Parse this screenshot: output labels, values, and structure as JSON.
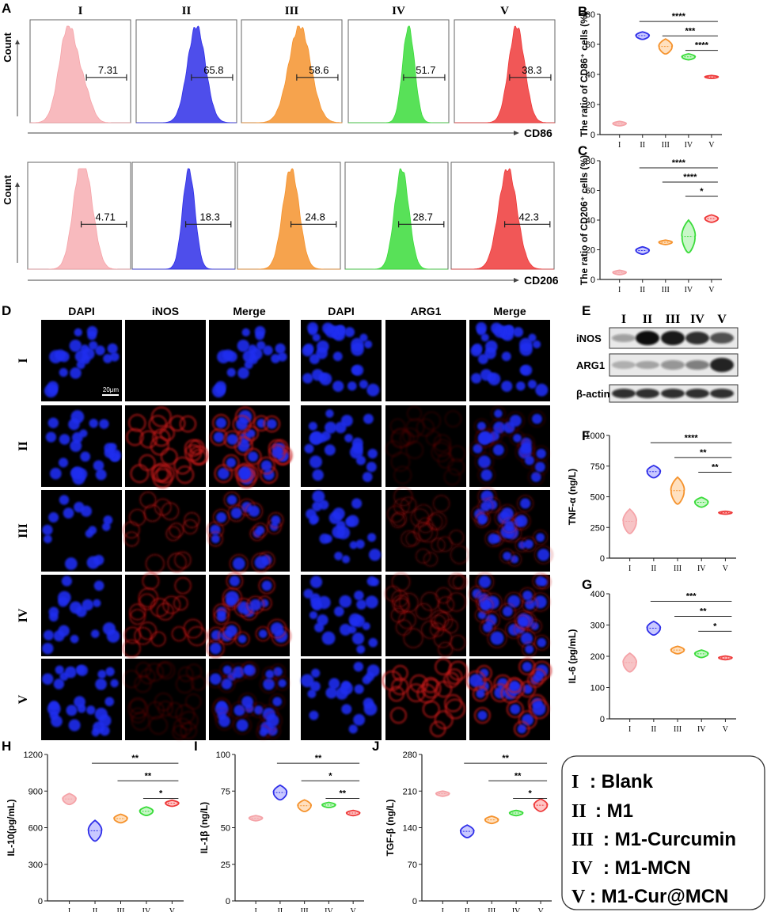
{
  "panel_letters": [
    "A",
    "B",
    "C",
    "D",
    "E",
    "F",
    "G",
    "H",
    "I",
    "J"
  ],
  "group_labels": [
    "I",
    "II",
    "III",
    "IV",
    "V"
  ],
  "colors": {
    "groups": [
      "#f5a3a8",
      "#2f2fe8",
      "#f5932e",
      "#3bdc3b",
      "#ee3a3a"
    ],
    "violin_fill": [
      "#f7c4c6",
      "#c9c9ff",
      "#ffe0bf",
      "#c8f7c8",
      "#ffc6c6"
    ]
  },
  "flow": {
    "count_label": "Count",
    "rows": [
      {
        "axis_label": "CD86",
        "values": [
          "7.31",
          "65.8",
          "58.6",
          "51.7",
          "38.3"
        ]
      },
      {
        "axis_label": "CD206",
        "values": [
          "4.71",
          "18.3",
          "24.8",
          "28.7",
          "42.3"
        ]
      }
    ]
  },
  "microscopy": {
    "headers": [
      "DAPI",
      "iNOS",
      "Merge",
      "DAPI",
      "ARG1",
      "Merge"
    ],
    "row_labels": [
      "I",
      "II",
      "III",
      "IV",
      "V"
    ],
    "scale_bar": "20μm"
  },
  "western": {
    "lane_labels": [
      "I",
      "II",
      "III",
      "IV",
      "V"
    ],
    "bands": [
      "iNOS",
      "ARG1",
      "β-actin"
    ]
  },
  "legend": {
    "entries": [
      {
        "num": "I",
        "name": ": Blank"
      },
      {
        "num": "II",
        "name": ": M1"
      },
      {
        "num": "III",
        "name": ": M1-Curcumin"
      },
      {
        "num": "IV",
        "name": ": M1-MCN"
      },
      {
        "num": "V",
        "name": ": M1-Cur@MCN"
      }
    ]
  },
  "chart_data": [
    {
      "id": "B",
      "type": "violin",
      "ylabel": "The ratio of CD86⁺ cells (%)",
      "ylim": [
        0,
        80
      ],
      "yticks": [
        0,
        20,
        40,
        60,
        80
      ],
      "categories": [
        "I",
        "II",
        "III",
        "IV",
        "V"
      ],
      "values": [
        7.3,
        65.8,
        58.6,
        51.7,
        38.3
      ],
      "spread": [
        1.5,
        2.5,
        5,
        2,
        1
      ],
      "significance": [
        {
          "from": 1,
          "to": 4,
          "label": "****"
        },
        {
          "from": 2,
          "to": 4,
          "label": "***"
        },
        {
          "from": 3,
          "to": 4,
          "label": "****"
        }
      ]
    },
    {
      "id": "C",
      "type": "violin",
      "ylabel": "The ratio of CD206⁺ cells (%)",
      "ylim": [
        0,
        80
      ],
      "yticks": [
        0,
        20,
        40,
        60,
        80
      ],
      "categories": [
        "I",
        "II",
        "III",
        "IV",
        "V"
      ],
      "values": [
        4.7,
        19.5,
        25,
        29,
        41
      ],
      "spread": [
        1.5,
        2.5,
        1.5,
        11,
        2.5
      ],
      "significance": [
        {
          "from": 1,
          "to": 4,
          "label": "****"
        },
        {
          "from": 2,
          "to": 4,
          "label": "****"
        },
        {
          "from": 3,
          "to": 4,
          "label": "*"
        }
      ]
    },
    {
      "id": "F",
      "type": "violin",
      "ylabel": "TNF-α (ng/L)",
      "ylim": [
        0,
        1000
      ],
      "yticks": [
        0,
        250,
        500,
        750,
        1000
      ],
      "categories": [
        "I",
        "II",
        "III",
        "IV",
        "V"
      ],
      "values": [
        300,
        705,
        550,
        455,
        370
      ],
      "spread": [
        100,
        50,
        110,
        40,
        12
      ],
      "significance": [
        {
          "from": 1,
          "to": 4,
          "label": "****"
        },
        {
          "from": 2,
          "to": 4,
          "label": "**"
        },
        {
          "from": 3,
          "to": 4,
          "label": "**"
        }
      ]
    },
    {
      "id": "G",
      "type": "violin",
      "ylabel": "IL-6 (pg/mL)",
      "ylim": [
        0,
        400
      ],
      "yticks": [
        0,
        100,
        200,
        300,
        400
      ],
      "categories": [
        "I",
        "II",
        "III",
        "IV",
        "V"
      ],
      "values": [
        180,
        290,
        220,
        208,
        195
      ],
      "spread": [
        30,
        22,
        12,
        12,
        6
      ],
      "significance": [
        {
          "from": 1,
          "to": 4,
          "label": "***"
        },
        {
          "from": 2,
          "to": 4,
          "label": "**"
        },
        {
          "from": 3,
          "to": 4,
          "label": "*"
        }
      ]
    },
    {
      "id": "H",
      "type": "violin",
      "ylabel": "IL-10(pg/mL)",
      "ylim": [
        0,
        1200
      ],
      "yticks": [
        0,
        300,
        600,
        900,
        1200
      ],
      "categories": [
        "I",
        "II",
        "III",
        "IV",
        "V"
      ],
      "values": [
        835,
        575,
        675,
        735,
        800
      ],
      "spread": [
        45,
        85,
        35,
        35,
        25
      ],
      "significance": [
        {
          "from": 1,
          "to": 4,
          "label": "**"
        },
        {
          "from": 2,
          "to": 4,
          "label": "**"
        },
        {
          "from": 3,
          "to": 4,
          "label": "*"
        }
      ]
    },
    {
      "id": "I",
      "type": "violin",
      "ylabel": "IL-1β (ng/L)",
      "ylim": [
        0,
        100
      ],
      "yticks": [
        0,
        25,
        50,
        75,
        100
      ],
      "categories": [
        "I",
        "II",
        "III",
        "IV",
        "V"
      ],
      "values": [
        56.5,
        74,
        65,
        65.5,
        60
      ],
      "spread": [
        1.8,
        5,
        4,
        1.8,
        1.8
      ],
      "significance": [
        {
          "from": 1,
          "to": 4,
          "label": "**"
        },
        {
          "from": 2,
          "to": 4,
          "label": "*"
        },
        {
          "from": 3,
          "to": 4,
          "label": "**"
        }
      ]
    },
    {
      "id": "J",
      "type": "violin",
      "ylabel": "TGF-β (ng/L)",
      "ylim": [
        0,
        280
      ],
      "yticks": [
        0,
        70,
        140,
        210,
        280
      ],
      "categories": [
        "I",
        "II",
        "III",
        "IV",
        "V"
      ],
      "values": [
        205,
        133,
        155,
        168,
        183
      ],
      "spread": [
        5,
        12,
        7,
        5,
        12
      ],
      "significance": [
        {
          "from": 1,
          "to": 4,
          "label": "**"
        },
        {
          "from": 2,
          "to": 4,
          "label": "**"
        },
        {
          "from": 3,
          "to": 4,
          "label": "*"
        }
      ]
    }
  ]
}
